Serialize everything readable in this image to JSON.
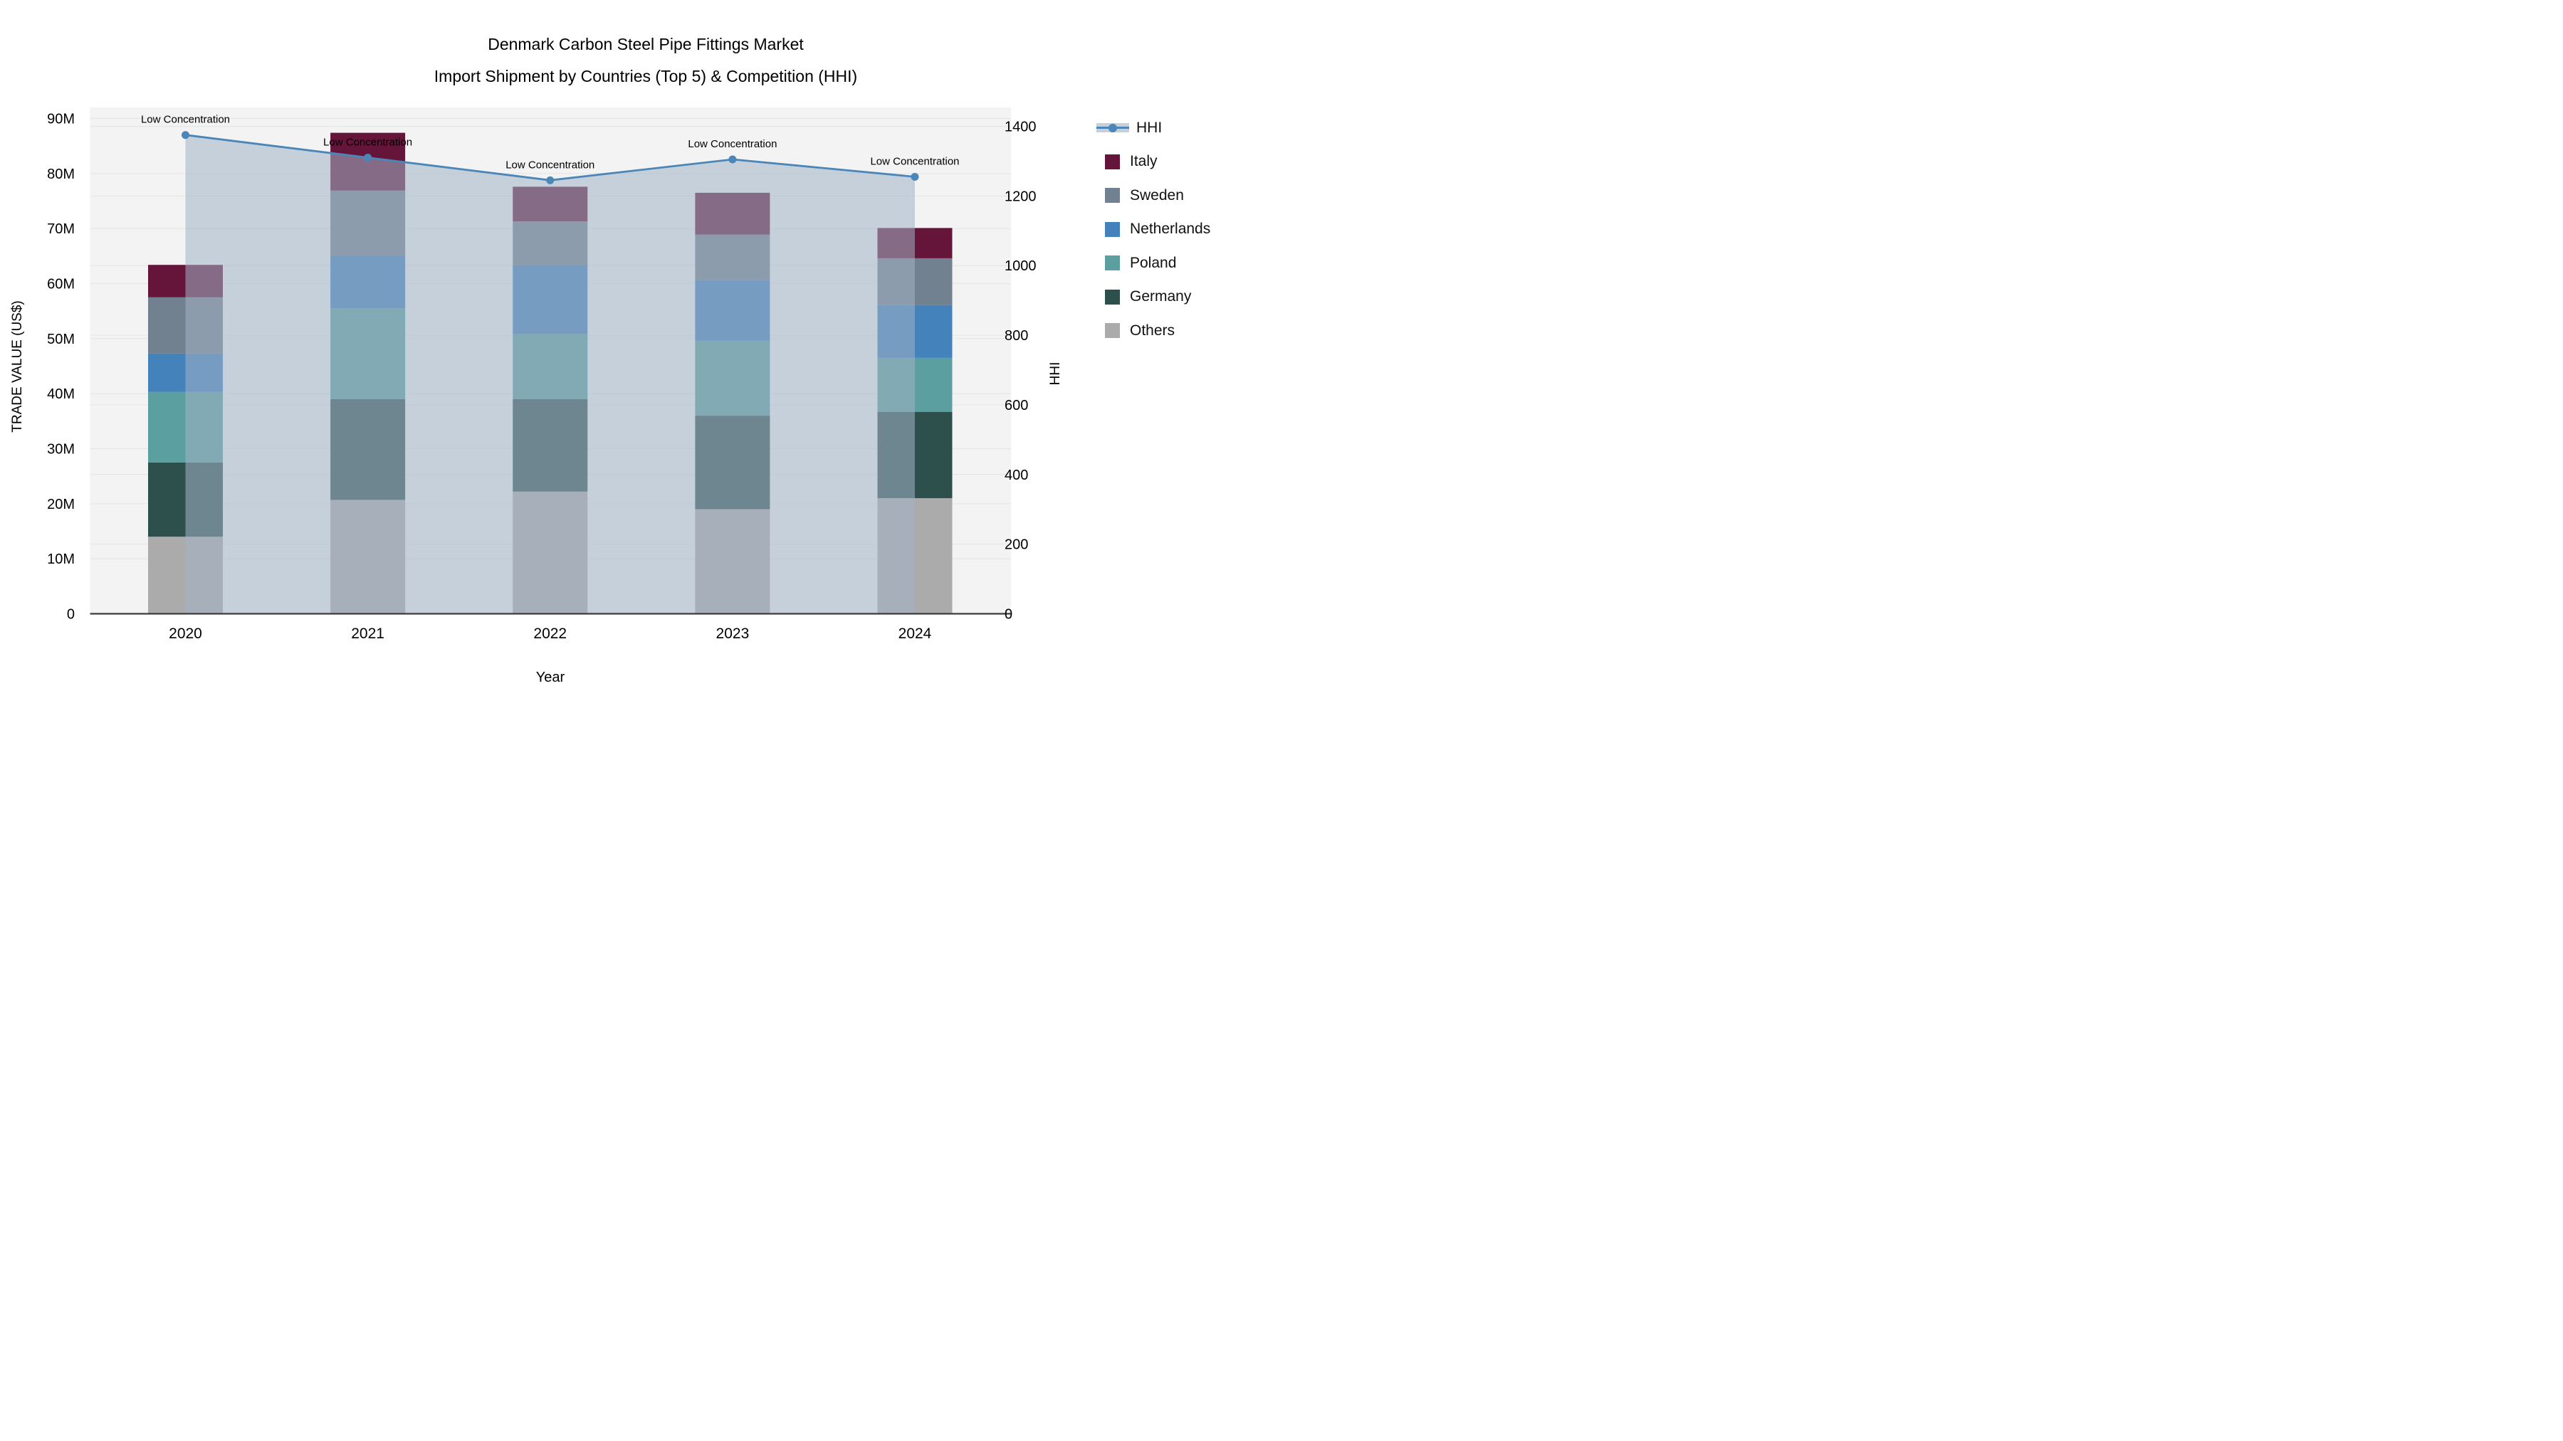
{
  "title": {
    "line1": "Denmark Carbon Steel Pipe Fittings Market",
    "line2": "Import Shipment by Countries (Top 5) & Competition (HHI)"
  },
  "axes": {
    "x": {
      "label": "Year",
      "ticks": [
        "2020",
        "2021",
        "2022",
        "2023",
        "2024"
      ]
    },
    "y_left": {
      "label": "TRADE VALUE (US$)",
      "ticks": [
        "0",
        "10M",
        "20M",
        "30M",
        "40M",
        "50M",
        "60M",
        "70M",
        "80M",
        "90M"
      ],
      "min": 0,
      "max": 90,
      "step": 10
    },
    "y_right": {
      "label": "HHI",
      "ticks": [
        "0",
        "200",
        "400",
        "600",
        "800",
        "1000",
        "1200",
        "1400"
      ],
      "min": 0,
      "max": 1400,
      "step": 200
    }
  },
  "legend": {
    "items": [
      {
        "label": "HHI",
        "type": "line",
        "color": "#4A86B8"
      },
      {
        "label": "Italy",
        "type": "swatch",
        "color": "#651539"
      },
      {
        "label": "Sweden",
        "type": "swatch",
        "color": "#71818F"
      },
      {
        "label": "Netherlands",
        "type": "swatch",
        "color": "#4382BA"
      },
      {
        "label": "Poland",
        "type": "swatch",
        "color": "#5C9FA0"
      },
      {
        "label": "Germany",
        "type": "swatch",
        "color": "#2E504D"
      },
      {
        "label": "Others",
        "type": "swatch",
        "color": "#ABABAB"
      }
    ]
  },
  "style": {
    "plot_background": "#F2F3F2",
    "gridline_color": "#E7E7E7",
    "axis_line_color": "#3C3C3C",
    "hhi_line_color": "#4A86B8",
    "hhi_area_fill": "rgba(163,178,199,0.55)"
  },
  "chart_data": {
    "type": "combo-stacked-bar-line",
    "title": "Denmark Carbon Steel Pipe Fittings Market — Import Shipment by Countries (Top 5) & Competition (HHI)",
    "categories": [
      "2020",
      "2021",
      "2022",
      "2023",
      "2024"
    ],
    "bar_unit": "M US$ (trade value)",
    "stack_order_bottom_to_top": [
      "Others",
      "Germany",
      "Poland",
      "Netherlands",
      "Sweden",
      "Italy"
    ],
    "series": [
      {
        "name": "Others",
        "color": "#ABABAB",
        "values": [
          14.0,
          20.7,
          22.2,
          19.0,
          21.0
        ]
      },
      {
        "name": "Germany",
        "color": "#2E504D",
        "values": [
          13.5,
          18.3,
          16.8,
          17.0,
          15.7
        ]
      },
      {
        "name": "Poland",
        "color": "#5C9FA0",
        "values": [
          12.8,
          16.5,
          11.8,
          13.6,
          9.8
        ]
      },
      {
        "name": "Netherlands",
        "color": "#4382BA",
        "values": [
          7.0,
          9.6,
          12.5,
          11.0,
          9.6
        ]
      },
      {
        "name": "Sweden",
        "color": "#71818F",
        "values": [
          10.2,
          11.8,
          8.0,
          8.3,
          8.5
        ]
      },
      {
        "name": "Italy",
        "color": "#651539",
        "values": [
          5.9,
          10.5,
          6.3,
          7.6,
          5.5
        ]
      }
    ],
    "bar_totals": [
      63.4,
      87.4,
      77.6,
      76.5,
      70.1
    ],
    "line_series": {
      "name": "HHI",
      "axis": "right",
      "color": "#4A86B8",
      "area_fill": "rgba(163,178,199,0.55)",
      "values": [
        1375,
        1310,
        1245,
        1305,
        1255
      ]
    },
    "point_annotations": [
      "Low Concentration",
      "Low Concentration",
      "Low Concentration",
      "Low Concentration",
      "Low Concentration"
    ],
    "xlabel": "Year",
    "ylabel_left": "TRADE VALUE (US$)",
    "ylabel_right": "HHI",
    "ylim_left": [
      0,
      90
    ],
    "ylim_right": [
      0,
      1400
    ],
    "grid": true,
    "legend_position": "right"
  }
}
